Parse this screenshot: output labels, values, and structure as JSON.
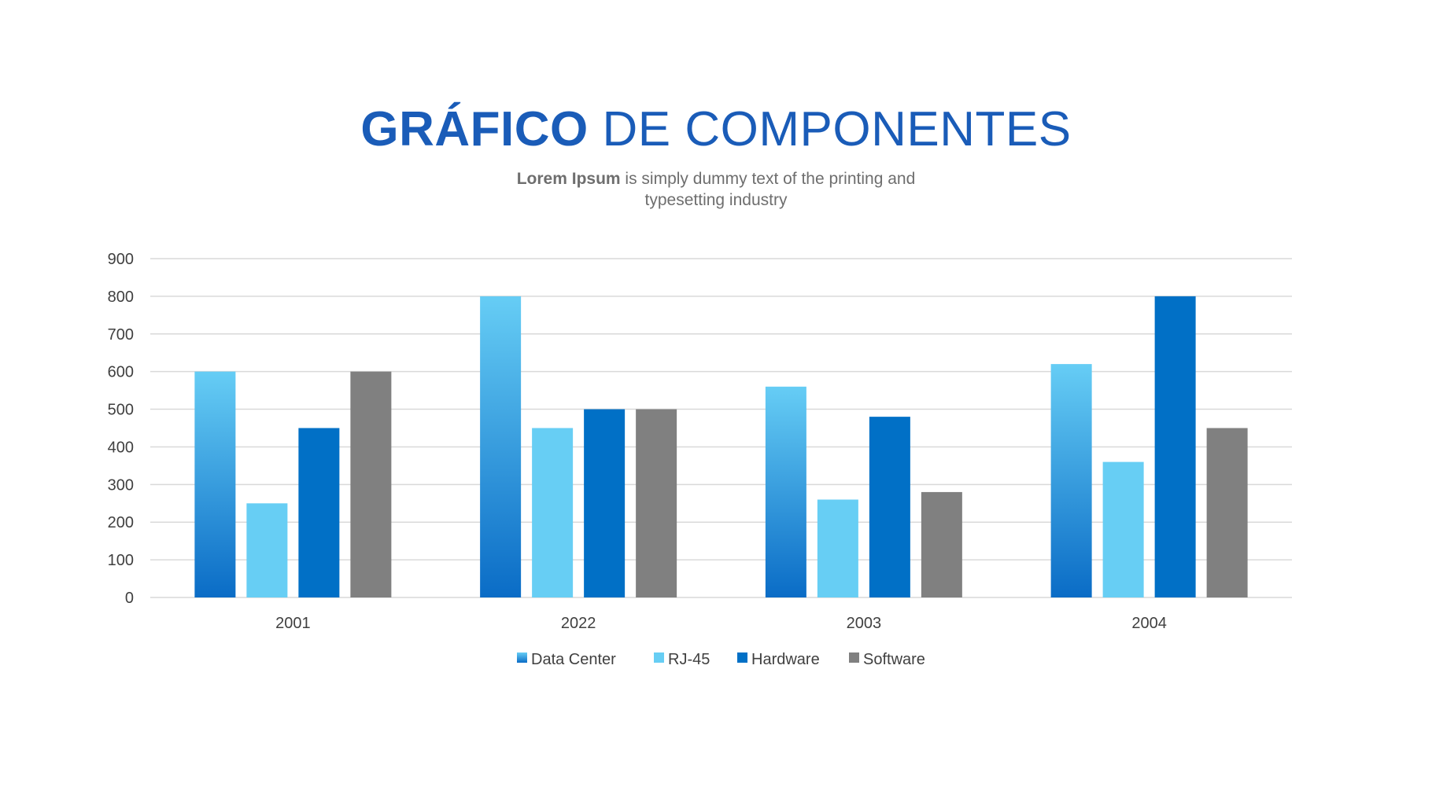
{
  "header": {
    "title_bold": "GRÁFICO",
    "title_rest": " DE COMPONENTES",
    "subtitle_bold": "Lorem Ipsum",
    "subtitle_rest": " is simply dummy text of the printing and typesetting industry"
  },
  "colors": {
    "title": "#1a5cb8",
    "data_center_top": "#66cdf5",
    "data_center_bottom": "#0a6cc6",
    "rj45": "#67cef4",
    "hardware": "#0170c6",
    "software": "#808080",
    "grid": "#d9d9d9"
  },
  "chart_data": {
    "type": "bar",
    "title": "GRÁFICO DE COMPONENTES",
    "xlabel": "",
    "ylabel": "",
    "categories": [
      "2001",
      "2022",
      "2003",
      "2004"
    ],
    "series": [
      {
        "name": "Data Center",
        "values": [
          600,
          800,
          560,
          620
        ]
      },
      {
        "name": "RJ-45",
        "values": [
          250,
          450,
          260,
          360
        ]
      },
      {
        "name": "Hardware",
        "values": [
          450,
          500,
          480,
          800
        ]
      },
      {
        "name": "Software",
        "values": [
          600,
          500,
          280,
          450
        ]
      }
    ],
    "ylim": [
      0,
      900
    ],
    "yticks": [
      0,
      100,
      200,
      300,
      400,
      500,
      600,
      700,
      800,
      900
    ],
    "grid": true,
    "legend": "bottom"
  }
}
